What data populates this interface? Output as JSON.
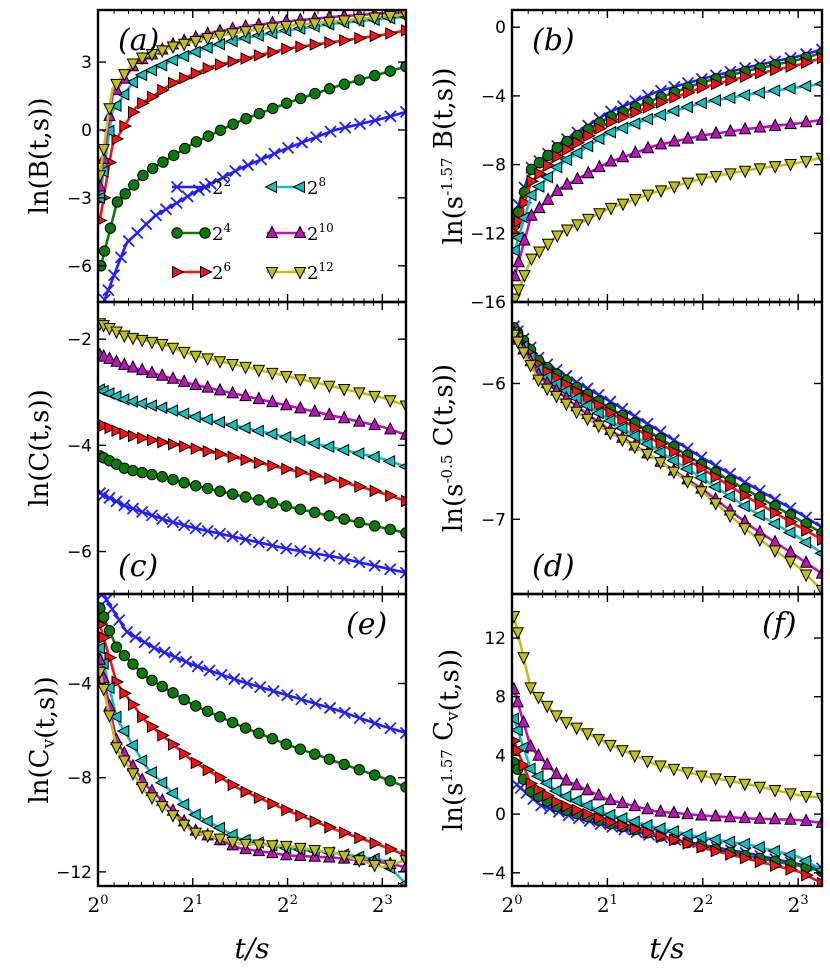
{
  "chart_data": [
    {
      "panel": "a",
      "type": "line",
      "panel_label": "(a)",
      "ylabel": "ln(B(t,s))",
      "xlabel": "",
      "x_ticks": [
        "2^0",
        "2^1",
        "2^2",
        "2^3"
      ],
      "y_ticks": [
        -6,
        -3,
        0,
        3
      ],
      "ylim": [
        -7.6,
        5.3
      ],
      "xlim_log2": [
        0,
        3.25
      ],
      "series": [
        {
          "name": "2^2",
          "x_log2": [
            0.07,
            0.3,
            0.6,
            1.0,
            1.5,
            2.0,
            2.5,
            3.0,
            3.25
          ],
          "values": [
            -7.5,
            -5.0,
            -3.8,
            -2.8,
            -1.7,
            -0.8,
            0.0,
            0.5,
            0.8
          ]
        },
        {
          "name": "2^4",
          "x_log2": [
            0.03,
            0.2,
            0.5,
            1.0,
            1.5,
            2.0,
            2.5,
            3.0,
            3.25
          ],
          "values": [
            -6.0,
            -3.2,
            -1.9,
            -0.6,
            0.4,
            1.2,
            1.9,
            2.5,
            2.8
          ]
        },
        {
          "name": "2^6",
          "x_log2": [
            0.02,
            0.15,
            0.4,
            0.8,
            1.2,
            1.6,
            2.0,
            2.5,
            3.0,
            3.25
          ],
          "values": [
            -4.0,
            -0.7,
            1.0,
            2.1,
            2.8,
            3.2,
            3.6,
            3.9,
            4.2,
            4.4
          ]
        },
        {
          "name": "2^8",
          "x_log2": [
            0.02,
            0.15,
            0.4,
            0.8,
            1.2,
            1.6,
            2.0,
            2.5,
            3.0,
            3.25
          ],
          "values": [
            -3.0,
            0.8,
            2.3,
            3.1,
            3.7,
            4.1,
            4.4,
            4.7,
            4.9,
            5.0
          ]
        },
        {
          "name": "2^10",
          "x_log2": [
            0.02,
            0.15,
            0.4,
            0.8,
            1.2,
            1.6,
            2.0,
            2.5,
            3.0,
            3.25
          ],
          "values": [
            -2.5,
            1.5,
            3.0,
            3.8,
            4.3,
            4.6,
            4.8,
            5.0,
            5.15,
            5.2
          ]
        },
        {
          "name": "2^12",
          "x_log2": [
            0.02,
            0.15,
            0.4,
            0.8,
            1.2,
            1.6,
            2.0,
            2.5,
            3.0,
            3.25
          ],
          "values": [
            -2.0,
            1.8,
            3.1,
            3.7,
            4.1,
            4.4,
            4.6,
            4.8,
            5.0,
            5.1
          ]
        }
      ]
    },
    {
      "panel": "b",
      "type": "line",
      "panel_label": "(b)",
      "ylabel": "ln(s^{-1.57} B(t,s))",
      "xlabel": "",
      "x_ticks": [
        "2^0",
        "2^1",
        "2^2",
        "2^3"
      ],
      "y_ticks": [
        -16,
        -12,
        -8,
        -4,
        0
      ],
      "ylim": [
        -16,
        1
      ],
      "xlim_log2": [
        0,
        3.25
      ],
      "series": [
        {
          "name": "2^2",
          "x_log2": [
            0.03,
            0.2,
            0.5,
            1.0,
            1.5,
            2.0,
            2.5,
            3.0,
            3.25
          ],
          "values": [
            -11.0,
            -8.2,
            -6.8,
            -5.0,
            -3.8,
            -3.0,
            -2.3,
            -1.7,
            -1.3
          ]
        },
        {
          "name": "2^4",
          "x_log2": [
            0.03,
            0.2,
            0.5,
            1.0,
            1.5,
            2.0,
            2.5,
            3.0,
            3.25
          ],
          "values": [
            -11.5,
            -8.3,
            -6.9,
            -5.3,
            -4.2,
            -3.2,
            -2.5,
            -1.9,
            -1.5
          ]
        },
        {
          "name": "2^6",
          "x_log2": [
            0.03,
            0.2,
            0.5,
            1.0,
            1.5,
            2.0,
            2.5,
            3.0,
            3.25
          ],
          "values": [
            -12.0,
            -9.0,
            -7.4,
            -5.6,
            -4.5,
            -3.5,
            -2.8,
            -2.2,
            -1.8
          ]
        },
        {
          "name": "2^8",
          "x_log2": [
            0.03,
            0.2,
            0.5,
            1.0,
            1.5,
            2.0,
            2.5,
            3.0,
            3.25
          ],
          "values": [
            -13.0,
            -9.8,
            -8.0,
            -6.2,
            -5.2,
            -4.4,
            -3.9,
            -3.5,
            -3.3
          ]
        },
        {
          "name": "2^10",
          "x_log2": [
            0.03,
            0.2,
            0.5,
            1.0,
            1.5,
            2.0,
            2.5,
            3.0,
            3.25
          ],
          "values": [
            -14.5,
            -11.0,
            -9.4,
            -7.9,
            -6.9,
            -6.3,
            -5.9,
            -5.6,
            -5.4
          ]
        },
        {
          "name": "2^12",
          "x_log2": [
            0.03,
            0.2,
            0.5,
            1.0,
            1.5,
            2.0,
            2.5,
            3.0,
            3.25
          ],
          "values": [
            -15.8,
            -13.5,
            -12.0,
            -10.6,
            -9.6,
            -8.8,
            -8.3,
            -7.9,
            -7.6
          ]
        }
      ]
    },
    {
      "panel": "c",
      "type": "line",
      "panel_label": "(c)",
      "ylabel": "ln(C(t,s))",
      "xlabel": "",
      "x_ticks": [
        "2^0",
        "2^1",
        "2^2",
        "2^3"
      ],
      "y_ticks": [
        -6,
        -4,
        -2
      ],
      "ylim": [
        -6.8,
        -1.3
      ],
      "xlim_log2": [
        0,
        3.25
      ],
      "series": [
        {
          "name": "2^2",
          "x_log2": [
            0.02,
            0.3,
            0.7,
            1.0,
            1.5,
            2.0,
            2.5,
            3.0,
            3.25
          ],
          "values": [
            -4.9,
            -5.15,
            -5.4,
            -5.55,
            -5.75,
            -5.95,
            -6.1,
            -6.3,
            -6.4
          ]
        },
        {
          "name": "2^4",
          "x_log2": [
            0.02,
            0.3,
            0.7,
            1.0,
            1.5,
            2.0,
            2.5,
            3.0,
            3.25
          ],
          "values": [
            -4.2,
            -4.45,
            -4.6,
            -4.75,
            -4.95,
            -5.15,
            -5.35,
            -5.55,
            -5.65
          ]
        },
        {
          "name": "2^6",
          "x_log2": [
            0.02,
            0.3,
            0.7,
            1.0,
            1.5,
            2.0,
            2.5,
            3.0,
            3.25
          ],
          "values": [
            -3.6,
            -3.8,
            -3.95,
            -4.05,
            -4.25,
            -4.45,
            -4.65,
            -4.9,
            -5.05
          ]
        },
        {
          "name": "2^8",
          "x_log2": [
            0.02,
            0.3,
            0.7,
            1.0,
            1.5,
            2.0,
            2.5,
            3.0,
            3.25
          ],
          "values": [
            -2.95,
            -3.15,
            -3.3,
            -3.45,
            -3.65,
            -3.85,
            -4.05,
            -4.25,
            -4.4
          ]
        },
        {
          "name": "2^10",
          "x_log2": [
            0.02,
            0.3,
            0.7,
            1.0,
            1.5,
            2.0,
            2.5,
            3.0,
            3.25
          ],
          "values": [
            -2.3,
            -2.5,
            -2.7,
            -2.85,
            -3.05,
            -3.25,
            -3.45,
            -3.65,
            -3.8
          ]
        },
        {
          "name": "2^12",
          "x_log2": [
            0.02,
            0.3,
            0.7,
            1.0,
            1.5,
            2.0,
            2.5,
            3.0,
            3.25
          ],
          "values": [
            -1.7,
            -1.95,
            -2.1,
            -2.3,
            -2.5,
            -2.7,
            -2.9,
            -3.1,
            -3.25
          ]
        }
      ]
    },
    {
      "panel": "d",
      "type": "line",
      "panel_label": "(d)",
      "ylabel": "ln(s^{-0.5} C(t,s))",
      "xlabel": "",
      "x_ticks": [
        "2^0",
        "2^1",
        "2^2",
        "2^3"
      ],
      "y_ticks": [
        -7,
        -6
      ],
      "ylim": [
        -7.55,
        -5.4
      ],
      "xlim_log2": [
        0,
        3.25
      ],
      "series": [
        {
          "name": "2^2",
          "x_log2": [
            0.02,
            0.3,
            0.7,
            1.0,
            1.5,
            2.0,
            2.5,
            3.0,
            3.25
          ],
          "values": [
            -5.58,
            -5.83,
            -6.0,
            -6.12,
            -6.33,
            -6.55,
            -6.75,
            -6.95,
            -7.06
          ]
        },
        {
          "name": "2^4",
          "x_log2": [
            0.02,
            0.3,
            0.7,
            1.0,
            1.5,
            2.0,
            2.5,
            3.0,
            3.25
          ],
          "values": [
            -5.59,
            -5.85,
            -6.04,
            -6.17,
            -6.38,
            -6.6,
            -6.8,
            -7.0,
            -7.1
          ]
        },
        {
          "name": "2^6",
          "x_log2": [
            0.02,
            0.3,
            0.7,
            1.0,
            1.5,
            2.0,
            2.5,
            3.0,
            3.25
          ],
          "values": [
            -5.61,
            -5.88,
            -6.07,
            -6.2,
            -6.42,
            -6.63,
            -6.85,
            -7.05,
            -7.15
          ]
        },
        {
          "name": "2^8",
          "x_log2": [
            0.02,
            0.3,
            0.7,
            1.0,
            1.5,
            2.0,
            2.5,
            3.0,
            3.25
          ],
          "values": [
            -5.62,
            -5.92,
            -6.12,
            -6.26,
            -6.48,
            -6.7,
            -6.93,
            -7.13,
            -7.25
          ]
        },
        {
          "name": "2^10",
          "x_log2": [
            0.02,
            0.3,
            0.7,
            1.0,
            1.5,
            2.0,
            2.5,
            3.0,
            3.25
          ],
          "values": [
            -5.63,
            -5.96,
            -6.18,
            -6.33,
            -6.55,
            -6.78,
            -7.05,
            -7.28,
            -7.4
          ]
        },
        {
          "name": "2^12",
          "x_log2": [
            0.02,
            0.3,
            0.7,
            1.0,
            1.5,
            2.0,
            2.5,
            3.0,
            3.25
          ],
          "values": [
            -5.64,
            -6.0,
            -6.22,
            -6.35,
            -6.55,
            -6.8,
            -7.1,
            -7.35,
            -7.52
          ]
        }
      ]
    },
    {
      "panel": "e",
      "type": "line",
      "panel_label": "(e)",
      "ylabel": "ln(C_v(t,s))",
      "xlabel": "t/s",
      "x_ticks": [
        "2^0",
        "2^1",
        "2^2",
        "2^3"
      ],
      "y_ticks": [
        -12,
        -8,
        -4
      ],
      "ylim": [
        -12.6,
        -0.2
      ],
      "xlim_log2": [
        0,
        3.25
      ],
      "series": [
        {
          "name": "2^2",
          "x_log2": [
            0.05,
            0.3,
            0.6,
            1.0,
            1.5,
            2.0,
            2.5,
            3.0,
            3.25
          ],
          "values": [
            -0.2,
            -1.8,
            -2.5,
            -3.2,
            -3.9,
            -4.5,
            -5.1,
            -5.8,
            -6.1
          ]
        },
        {
          "name": "2^4",
          "x_log2": [
            0.02,
            0.2,
            0.5,
            1.0,
            1.5,
            2.0,
            2.5,
            3.0,
            3.25
          ],
          "values": [
            -0.8,
            -2.5,
            -3.7,
            -4.9,
            -5.8,
            -6.6,
            -7.3,
            -8.0,
            -8.4
          ]
        },
        {
          "name": "2^6",
          "x_log2": [
            0.02,
            0.2,
            0.5,
            1.0,
            1.5,
            2.0,
            2.5,
            3.0,
            3.25
          ],
          "values": [
            -1.5,
            -4.0,
            -5.6,
            -7.3,
            -8.5,
            -9.4,
            -10.2,
            -10.9,
            -11.3
          ]
        },
        {
          "name": "2^8",
          "x_log2": [
            0.02,
            0.2,
            0.5,
            1.0,
            1.5,
            2.0,
            2.5,
            3.0,
            3.25
          ],
          "values": [
            -2.5,
            -5.5,
            -7.5,
            -9.5,
            -10.6,
            -11.0,
            -11.2,
            -11.5,
            -12.5
          ]
        },
        {
          "name": "2^10",
          "x_log2": [
            0.02,
            0.2,
            0.5,
            1.0,
            1.5,
            2.0,
            2.5,
            3.0,
            3.25
          ],
          "values": [
            -3.0,
            -6.5,
            -8.3,
            -10.2,
            -11.0,
            -11.3,
            -11.4,
            -11.6,
            -11.8
          ]
        },
        {
          "name": "2^12",
          "x_log2": [
            0.02,
            0.2,
            0.5,
            1.0,
            1.5,
            2.0,
            2.5,
            3.0,
            3.25
          ],
          "values": [
            -3.5,
            -6.8,
            -8.6,
            -10.3,
            -10.8,
            -10.9,
            -11.2,
            -11.8,
            -11.5
          ]
        }
      ]
    },
    {
      "panel": "f",
      "type": "line",
      "panel_label": "(f)",
      "ylabel": "ln(s^{1.57} C_v(t,s))",
      "xlabel": "t/s",
      "x_ticks": [
        "2^0",
        "2^1",
        "2^2",
        "2^3"
      ],
      "y_ticks": [
        -4,
        0,
        4,
        8,
        12
      ],
      "ylim": [
        -4.9,
        15
      ],
      "xlim_log2": [
        0,
        3.25
      ],
      "series": [
        {
          "name": "2^2",
          "x_log2": [
            0.05,
            0.3,
            0.6,
            1.0,
            1.5,
            2.0,
            2.5,
            3.0,
            3.25
          ],
          "values": [
            2.0,
            0.6,
            -0.1,
            -0.8,
            -1.5,
            -2.1,
            -2.7,
            -3.4,
            -3.7
          ]
        },
        {
          "name": "2^4",
          "x_log2": [
            0.02,
            0.2,
            0.5,
            1.0,
            1.5,
            2.0,
            2.5,
            3.0,
            3.25
          ],
          "values": [
            3.5,
            1.5,
            0.4,
            -0.6,
            -1.4,
            -2.2,
            -2.9,
            -3.5,
            -3.9
          ]
        },
        {
          "name": "2^6",
          "x_log2": [
            0.02,
            0.2,
            0.5,
            1.0,
            1.5,
            2.0,
            2.5,
            3.0,
            3.25
          ],
          "values": [
            5.0,
            2.0,
            0.7,
            -0.5,
            -1.4,
            -2.3,
            -3.1,
            -3.9,
            -4.7
          ]
        },
        {
          "name": "2^8",
          "x_log2": [
            0.02,
            0.2,
            0.5,
            1.0,
            1.5,
            2.0,
            2.5,
            3.0,
            3.25
          ],
          "values": [
            6.5,
            3.0,
            1.4,
            0.0,
            -0.9,
            -1.6,
            -2.1,
            -2.9,
            -3.8
          ]
        },
        {
          "name": "2^10",
          "x_log2": [
            0.02,
            0.2,
            0.5,
            1.0,
            1.5,
            2.0,
            2.5,
            3.0,
            3.25
          ],
          "values": [
            8.5,
            4.5,
            2.5,
            1.0,
            0.2,
            -0.1,
            -0.3,
            -0.4,
            -0.6
          ]
        },
        {
          "name": "2^12",
          "x_log2": [
            0.02,
            0.2,
            0.5,
            1.0,
            1.5,
            2.0,
            2.5,
            3.0,
            3.25
          ],
          "values": [
            13.5,
            8.5,
            6.5,
            4.8,
            3.4,
            2.6,
            2.0,
            1.3,
            1.1
          ]
        }
      ]
    }
  ],
  "legend": {
    "location": "lower-right of panel (a)",
    "entries": [
      "2^2",
      "2^4",
      "2^6",
      "2^8",
      "2^10",
      "2^12"
    ]
  },
  "style": {
    "colors": {
      "2^2": "#1f1fff",
      "2^4": "#0a7a0a",
      "2^6": "#ff1010",
      "2^8": "#10c0c0",
      "2^10": "#c010c0",
      "2^12": "#c0c010"
    },
    "markers": {
      "2^2": "x",
      "2^4": "circle",
      "2^6": "triangle-right",
      "2^8": "triangle-left",
      "2^10": "triangle-up",
      "2^12": "triangle-down"
    }
  }
}
